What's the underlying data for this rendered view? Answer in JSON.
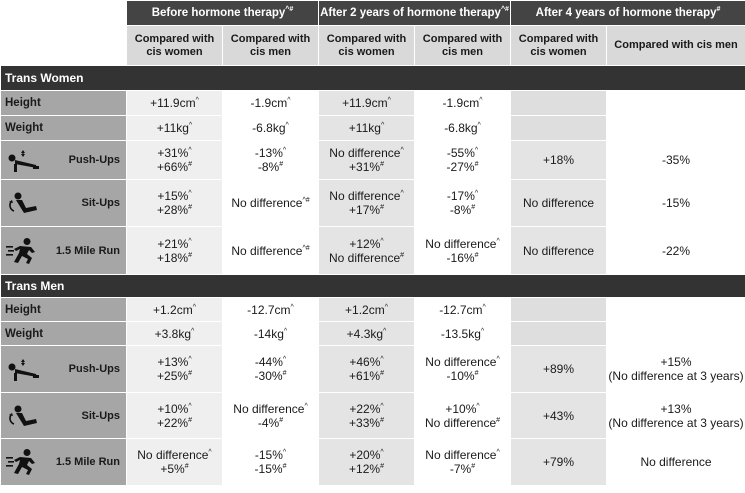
{
  "headers": {
    "col_groups": [
      {
        "label": "Before hormone therapy",
        "mark": "^#"
      },
      {
        "label": "After 2 years of hormone therapy",
        "mark": "^#"
      },
      {
        "label": "After 4 years of hormone therapy",
        "mark": "#"
      }
    ],
    "sub": [
      "Compared with cis women",
      "Compared with cis men",
      "Compared with cis women",
      "Compared with cis men",
      "Compared with cis women",
      "Compared with cis men"
    ]
  },
  "sections": [
    {
      "title": "Trans Women",
      "rows": [
        {
          "label": "Height",
          "icon": null,
          "cells": [
            [
              [
                "+11.9cm",
                "^"
              ]
            ],
            [
              [
                "-1.9cm",
                "^"
              ]
            ],
            [
              [
                "+11.9cm",
                "^"
              ]
            ],
            [
              [
                "-1.9cm",
                "^"
              ]
            ],
            [],
            []
          ]
        },
        {
          "label": "Weight",
          "icon": null,
          "cells": [
            [
              [
                "+11kg",
                "^"
              ]
            ],
            [
              [
                "-6.8kg",
                "^"
              ]
            ],
            [
              [
                "+11kg",
                "^"
              ]
            ],
            [
              [
                "-6.8kg",
                "^"
              ]
            ],
            [],
            []
          ]
        },
        {
          "label": "Push-Ups",
          "icon": "push-up-icon",
          "cells": [
            [
              [
                "+31%",
                "^"
              ],
              [
                "+66%",
                "#"
              ]
            ],
            [
              [
                "-13%",
                "^"
              ],
              [
                "-8%",
                "#"
              ]
            ],
            [
              [
                "No difference",
                "^"
              ],
              [
                "+31%",
                "#"
              ]
            ],
            [
              [
                "-55%",
                "^"
              ],
              [
                "-27%",
                "#"
              ]
            ],
            [
              [
                "+18%",
                ""
              ]
            ],
            [
              [
                "-35%",
                ""
              ]
            ]
          ]
        },
        {
          "label": "Sit-Ups",
          "icon": "sit-up-icon",
          "cells": [
            [
              [
                "+15%",
                "^"
              ],
              [
                "+28%",
                "#"
              ]
            ],
            [
              [
                "No difference",
                "^#"
              ]
            ],
            [
              [
                "No difference",
                "^"
              ],
              [
                "+17%",
                "#"
              ]
            ],
            [
              [
                "-17%",
                "^"
              ],
              [
                "-8%",
                "#"
              ]
            ],
            [
              [
                "No difference",
                ""
              ]
            ],
            [
              [
                "-15%",
                ""
              ]
            ]
          ]
        },
        {
          "label": "1.5 Mile Run",
          "icon": "runner-icon",
          "cells": [
            [
              [
                "+21%",
                "^"
              ],
              [
                "+18%",
                "#"
              ]
            ],
            [
              [
                "No difference",
                "^#"
              ]
            ],
            [
              [
                "+12%",
                "^"
              ],
              [
                "No difference",
                "#"
              ]
            ],
            [
              [
                "No difference",
                "^"
              ],
              [
                "-16%",
                "#"
              ]
            ],
            [
              [
                "No difference",
                ""
              ]
            ],
            [
              [
                "-22%",
                ""
              ]
            ]
          ]
        }
      ]
    },
    {
      "title": "Trans Men",
      "rows": [
        {
          "label": "Height",
          "icon": null,
          "cells": [
            [
              [
                "+1.2cm",
                "^"
              ]
            ],
            [
              [
                "-12.7cm",
                "^"
              ]
            ],
            [
              [
                "+1.2cm",
                "^"
              ]
            ],
            [
              [
                "-12.7cm",
                "^"
              ]
            ],
            [],
            []
          ]
        },
        {
          "label": "Weight",
          "icon": null,
          "cells": [
            [
              [
                "+3.8kg",
                "^"
              ]
            ],
            [
              [
                "-14kg",
                "^"
              ]
            ],
            [
              [
                "+4.3kg",
                "^"
              ]
            ],
            [
              [
                "-13.5kg",
                "^"
              ]
            ],
            [],
            []
          ]
        },
        {
          "label": "Push-Ups",
          "icon": "push-up-icon",
          "cells": [
            [
              [
                "+13%",
                "^"
              ],
              [
                "+25%",
                "#"
              ]
            ],
            [
              [
                "-44%",
                "^"
              ],
              [
                "-30%",
                "#"
              ]
            ],
            [
              [
                "+46%",
                "^"
              ],
              [
                "+61%",
                "#"
              ]
            ],
            [
              [
                "No difference",
                "^"
              ],
              [
                "-10%",
                "#"
              ]
            ],
            [
              [
                "+89%",
                ""
              ]
            ],
            [
              [
                "+15%",
                ""
              ],
              [
                "(No difference at 3 years)",
                ""
              ]
            ]
          ]
        },
        {
          "label": "Sit-Ups",
          "icon": "sit-up-icon",
          "cells": [
            [
              [
                "+10%",
                "^"
              ],
              [
                "+22%",
                "#"
              ]
            ],
            [
              [
                "No difference",
                "^"
              ],
              [
                "-4%",
                "#"
              ]
            ],
            [
              [
                "+22%",
                "^"
              ],
              [
                "+33%",
                "#"
              ]
            ],
            [
              [
                "+10%",
                "^"
              ],
              [
                "No difference",
                "#"
              ]
            ],
            [
              [
                "+43%",
                ""
              ]
            ],
            [
              [
                "+13%",
                ""
              ],
              [
                "(No difference at 3 years)",
                ""
              ]
            ]
          ]
        },
        {
          "label": "1.5 Mile Run",
          "icon": "runner-icon",
          "cells": [
            [
              [
                "No difference",
                "^"
              ],
              [
                "+5%",
                "#"
              ]
            ],
            [
              [
                "-15%",
                "^"
              ],
              [
                "-15%",
                "#"
              ]
            ],
            [
              [
                "+20%",
                "^"
              ],
              [
                "+12%",
                "#"
              ]
            ],
            [
              [
                "No difference",
                "^"
              ],
              [
                "-7%",
                "#"
              ]
            ],
            [
              [
                "+79%",
                ""
              ]
            ],
            [
              [
                "No difference",
                ""
              ]
            ]
          ]
        }
      ]
    }
  ]
}
